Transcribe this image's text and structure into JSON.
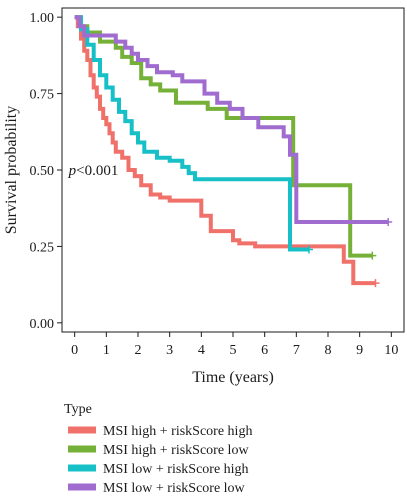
{
  "chart_data": {
    "type": "line",
    "subtype": "kaplan-meier step curves",
    "xlabel": "Time (years)",
    "ylabel": "Survival probability",
    "xlim": [
      -0.4,
      10.4
    ],
    "ylim": [
      -0.03,
      1.03
    ],
    "x_ticks": [
      0,
      1,
      2,
      3,
      4,
      5,
      6,
      7,
      8,
      9,
      10
    ],
    "y_ticks": [
      0.0,
      0.25,
      0.5,
      0.75,
      1.0
    ],
    "y_tick_labels": [
      "0.00",
      "0.25",
      "0.50",
      "0.75",
      "1.00"
    ],
    "grid": false,
    "annotation": {
      "prefix": "p",
      "text": "<0.001",
      "x": 0.0,
      "y": 0.5
    },
    "legend": {
      "title": "Type",
      "placement": "bottom"
    },
    "series": [
      {
        "name": "MSI high + riskScore high",
        "color": "#f0706a",
        "x": [
          0,
          0.1,
          0.2,
          0.3,
          0.4,
          0.5,
          0.6,
          0.7,
          0.8,
          0.9,
          1.0,
          1.1,
          1.2,
          1.3,
          1.5,
          1.7,
          1.9,
          2.1,
          2.4,
          2.7,
          3.0,
          4.0,
          4.3,
          5.0,
          5.2,
          5.7,
          8.5,
          8.8,
          9.5
        ],
        "y": [
          1.0,
          0.97,
          0.93,
          0.89,
          0.86,
          0.81,
          0.77,
          0.74,
          0.7,
          0.67,
          0.65,
          0.62,
          0.59,
          0.56,
          0.54,
          0.5,
          0.48,
          0.45,
          0.42,
          0.41,
          0.4,
          0.35,
          0.3,
          0.27,
          0.26,
          0.25,
          0.2,
          0.13,
          0.13
        ]
      },
      {
        "name": "MSI high + riskScore low",
        "color": "#75b138",
        "x": [
          0,
          0.2,
          0.4,
          0.8,
          1.3,
          1.5,
          1.8,
          2.1,
          2.4,
          2.7,
          3.0,
          3.2,
          4.2,
          4.8,
          5.6,
          6.0,
          6.9,
          8.7,
          9.0,
          9.4
        ],
        "y": [
          1.0,
          0.97,
          0.95,
          0.92,
          0.9,
          0.87,
          0.85,
          0.8,
          0.78,
          0.76,
          0.76,
          0.72,
          0.7,
          0.67,
          0.67,
          0.67,
          0.45,
          0.22,
          0.22,
          0.22
        ]
      },
      {
        "name": "MSI low + riskScore high",
        "color": "#16c0c6",
        "x": [
          0,
          0.2,
          0.4,
          0.6,
          0.8,
          1.0,
          1.2,
          1.4,
          1.6,
          1.8,
          2.0,
          2.2,
          2.6,
          3.0,
          3.4,
          3.6,
          3.8,
          6.8,
          7.4
        ],
        "y": [
          1.0,
          0.96,
          0.91,
          0.86,
          0.81,
          0.77,
          0.73,
          0.69,
          0.66,
          0.62,
          0.59,
          0.56,
          0.54,
          0.53,
          0.51,
          0.49,
          0.47,
          0.24,
          0.24
        ]
      },
      {
        "name": "MSI low + riskScore low",
        "color": "#a06cd0",
        "x": [
          0,
          0.15,
          0.3,
          1.3,
          1.6,
          1.8,
          2.0,
          2.3,
          2.6,
          3.1,
          3.4,
          4.1,
          4.5,
          4.9,
          5.3,
          5.8,
          6.6,
          6.8,
          7.0,
          9.9
        ],
        "y": [
          1.0,
          0.97,
          0.94,
          0.92,
          0.9,
          0.88,
          0.86,
          0.84,
          0.82,
          0.81,
          0.79,
          0.75,
          0.72,
          0.7,
          0.67,
          0.64,
          0.61,
          0.55,
          0.33,
          0.33
        ]
      }
    ]
  }
}
